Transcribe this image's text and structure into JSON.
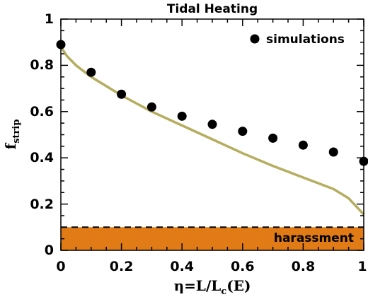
{
  "chart_data": {
    "type": "scatter",
    "title": "Tidal Heating",
    "xlabel": {
      "main": "η=L/L",
      "sub": "c",
      "tail": "(E)"
    },
    "ylabel": {
      "main": "f",
      "sub": "strip"
    },
    "xlim": [
      0,
      1
    ],
    "ylim": [
      0,
      1
    ],
    "x_ticks": [
      "0",
      "0.2",
      "0.4",
      "0.6",
      "0.8",
      "1"
    ],
    "y_ticks": [
      "0",
      "0.2",
      "0.4",
      "0.6",
      "0.8",
      "1"
    ],
    "series": [
      {
        "name": "simulations",
        "kind": "scatter",
        "color": "#000000",
        "x": [
          0,
          0.1,
          0.2,
          0.3,
          0.4,
          0.5,
          0.6,
          0.7,
          0.8,
          0.9,
          1.0
        ],
        "y": [
          0.89,
          0.77,
          0.675,
          0.62,
          0.58,
          0.545,
          0.515,
          0.485,
          0.455,
          0.425,
          0.385
        ]
      },
      {
        "kind": "line",
        "color": "#b5ad5f",
        "x": [
          0,
          0.02,
          0.05,
          0.1,
          0.15,
          0.2,
          0.3,
          0.4,
          0.5,
          0.6,
          0.7,
          0.8,
          0.9,
          0.95,
          1.0
        ],
        "y": [
          0.88,
          0.84,
          0.8,
          0.75,
          0.71,
          0.67,
          0.6,
          0.54,
          0.48,
          0.42,
          0.365,
          0.315,
          0.265,
          0.225,
          0.155
        ]
      }
    ],
    "band": {
      "label": "harassment",
      "ymin": 0,
      "ymax": 0.1,
      "color": "#e07b16",
      "line_style": "dashed"
    },
    "legend_placement": "top-right",
    "grid": false
  }
}
